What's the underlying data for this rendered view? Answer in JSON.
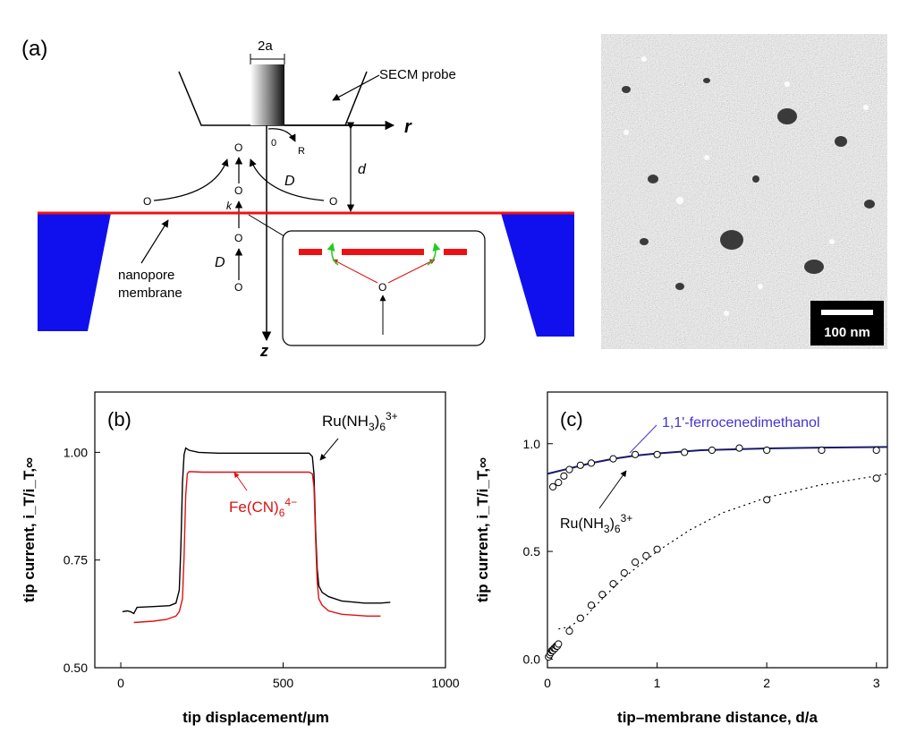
{
  "panel_a": {
    "label": "(a)",
    "dim_label": "2a",
    "probe_label": "SECM probe",
    "r_axis": "r",
    "z_axis": "z",
    "origin": "0",
    "R_label": "R",
    "O_label": "O",
    "D_label": "D",
    "d_label": "d",
    "k_label": "k",
    "membrane_label_line1": "nanopore",
    "membrane_label_line2": "membrane",
    "scale_bar": "100 nm",
    "colors": {
      "membrane_support": "#1010ee",
      "membrane": "#ee1111",
      "green_arrow": "#22cc22"
    }
  },
  "chart_data": [
    {
      "type": "line",
      "panel_label": "(b)",
      "xlabel": "tip displacement/µm",
      "ylabel": "tip current, i_T/i_T,∞",
      "xlim": [
        -80,
        1000
      ],
      "ylim": [
        0.5,
        1.14
      ],
      "xticks": [
        0,
        500,
        1000
      ],
      "yticks": [
        "0.50",
        "0.75",
        "1.00"
      ],
      "series": [
        {
          "name": "Ru(NH3)6 3+",
          "color": "#000000",
          "x": [
            5,
            20,
            30,
            40,
            50,
            100,
            150,
            170,
            180,
            185,
            190,
            195,
            200,
            210,
            240,
            300,
            400,
            500,
            580,
            590,
            595,
            600,
            605,
            610,
            620,
            640,
            680,
            750,
            800,
            830
          ],
          "y": [
            0.63,
            0.632,
            0.63,
            0.626,
            0.64,
            0.642,
            0.644,
            0.65,
            0.68,
            0.78,
            0.93,
            0.995,
            1.01,
            1.005,
            1.0,
            0.998,
            0.998,
            0.998,
            0.998,
            0.99,
            0.95,
            0.82,
            0.73,
            0.69,
            0.675,
            0.665,
            0.655,
            0.65,
            0.65,
            0.652
          ]
        },
        {
          "name": "Fe(CN)6 4-",
          "color": "#dd1111",
          "x": [
            40,
            60,
            100,
            140,
            170,
            180,
            190,
            195,
            200,
            205,
            210,
            220,
            250,
            300,
            400,
            500,
            580,
            590,
            595,
            600,
            605,
            610,
            620,
            640,
            680,
            720,
            760,
            800
          ],
          "y": [
            0.605,
            0.606,
            0.608,
            0.612,
            0.62,
            0.63,
            0.66,
            0.76,
            0.9,
            0.95,
            0.955,
            0.955,
            0.954,
            0.954,
            0.954,
            0.954,
            0.954,
            0.95,
            0.92,
            0.8,
            0.7,
            0.66,
            0.645,
            0.632,
            0.624,
            0.622,
            0.62,
            0.62
          ]
        }
      ],
      "annotations": [
        "Ru(NH₃)₆³⁺",
        "Fe(CN)₆⁴⁻"
      ]
    },
    {
      "type": "scatter",
      "panel_label": "(c)",
      "xlabel": "tip–membrane distance, d/a",
      "ylabel": "tip current, i_T/i_T,∞",
      "xlim": [
        0,
        3.1
      ],
      "ylim": [
        -0.04,
        1.24
      ],
      "xticks": [
        "0",
        "1",
        "2",
        "3"
      ],
      "yticks": [
        "0.0",
        "0.5",
        "1.0"
      ],
      "series": [
        {
          "name": "1,1'-ferrocenedimethanol",
          "color": "#000000",
          "marker": "open-circle",
          "x": [
            0.05,
            0.1,
            0.15,
            0.2,
            0.3,
            0.4,
            0.6,
            0.8,
            1.0,
            1.25,
            1.5,
            1.75,
            2.0,
            2.5,
            3.0
          ],
          "y": [
            0.8,
            0.82,
            0.85,
            0.88,
            0.9,
            0.91,
            0.93,
            0.95,
            0.95,
            0.96,
            0.97,
            0.98,
            0.97,
            0.97,
            0.97
          ]
        },
        {
          "name": "Ru(NH3)6 3+",
          "color": "#000000",
          "marker": "open-circle",
          "x": [
            0.01,
            0.02,
            0.03,
            0.04,
            0.05,
            0.06,
            0.07,
            0.08,
            0.09,
            0.1,
            0.2,
            0.3,
            0.4,
            0.5,
            0.6,
            0.7,
            0.8,
            0.9,
            1.0,
            2.0,
            3.0
          ],
          "y": [
            0.01,
            0.02,
            0.03,
            0.04,
            0.04,
            0.05,
            0.05,
            0.06,
            0.06,
            0.07,
            0.13,
            0.19,
            0.25,
            0.3,
            0.35,
            0.4,
            0.45,
            0.48,
            0.51,
            0.74,
            0.84
          ]
        }
      ],
      "fits": [
        {
          "style": "solid",
          "color": "#1a1a6a",
          "x": [
            0,
            0.2,
            0.4,
            0.6,
            0.8,
            1.0,
            1.4,
            2.0,
            2.5,
            3.1
          ],
          "y": [
            0.86,
            0.885,
            0.91,
            0.93,
            0.945,
            0.955,
            0.97,
            0.978,
            0.982,
            0.985
          ]
        },
        {
          "style": "dotted",
          "color": "#000000",
          "x": [
            0.1,
            0.2,
            0.35,
            0.5,
            0.7,
            1.0,
            1.3,
            1.6,
            2.0,
            2.5,
            3.0,
            3.1
          ],
          "y": [
            0.14,
            0.15,
            0.2,
            0.28,
            0.38,
            0.5,
            0.6,
            0.68,
            0.75,
            0.81,
            0.85,
            0.86
          ]
        }
      ],
      "annotations": [
        "1,1'-ferrocenedimethanol",
        "Ru(NH₃)₆³⁺"
      ]
    }
  ]
}
